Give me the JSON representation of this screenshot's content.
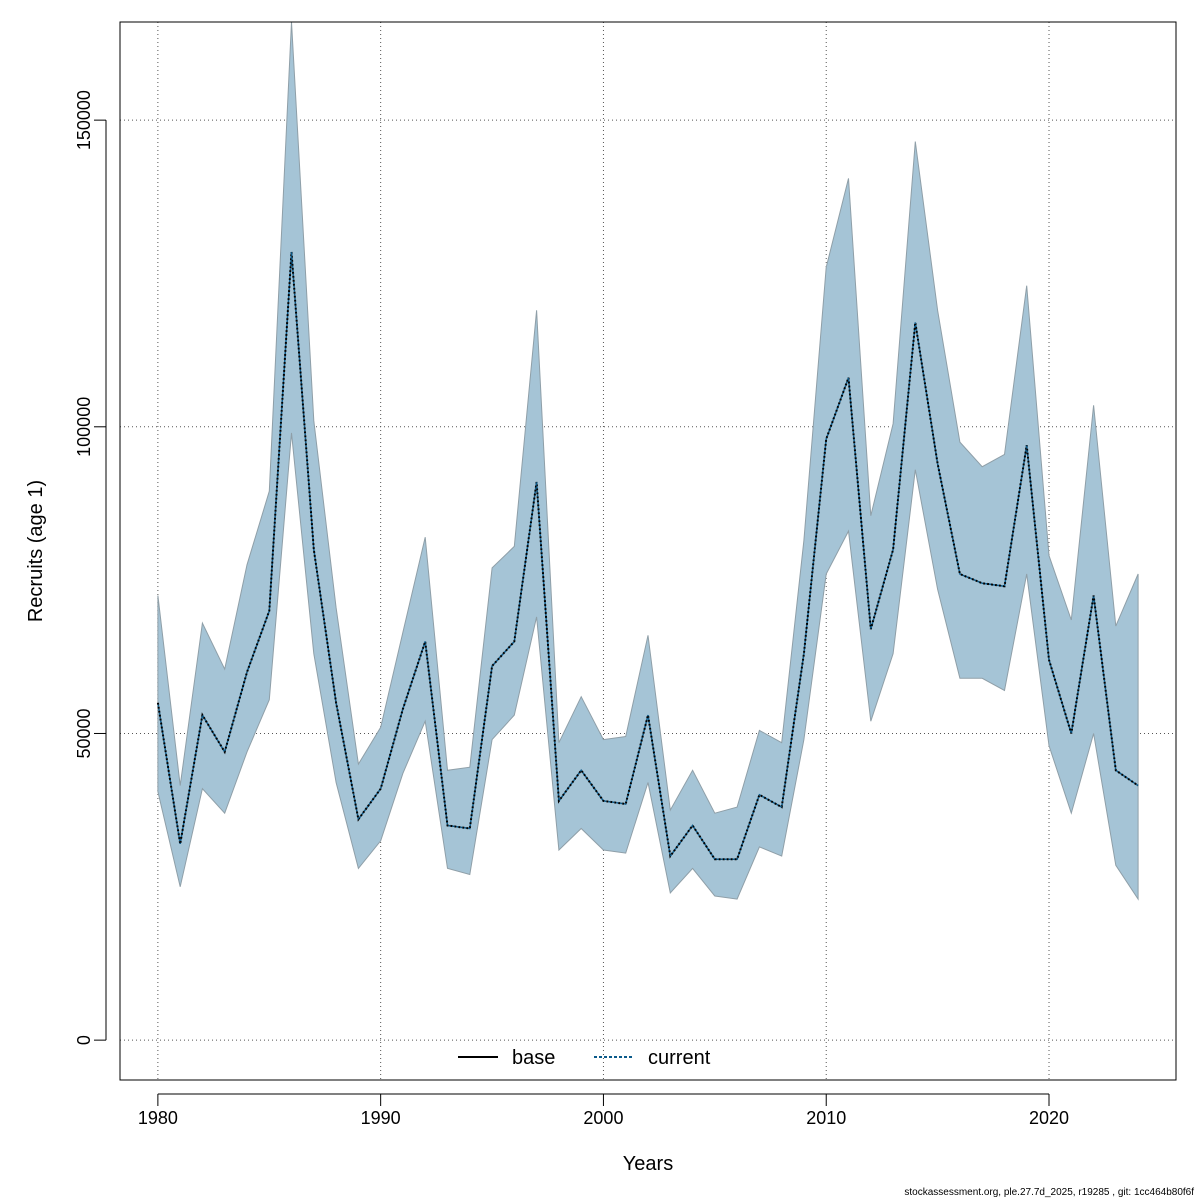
{
  "chart_data": {
    "type": "line",
    "xlabel": "Years",
    "ylabel": "Recruits (age 1)",
    "xlim": [
      1978.3,
      2025.7
    ],
    "ylim": [
      -6500,
      166000
    ],
    "x_ticks": [
      1980,
      1990,
      2000,
      2010,
      2020
    ],
    "y_ticks": [
      0,
      50000,
      100000,
      150000
    ],
    "grid": true,
    "legend": {
      "placement": "bottom-center",
      "entries": [
        "base",
        "current"
      ]
    },
    "colors": {
      "band": "#a5c4d6",
      "band_edge": "#8f9fa8",
      "base": "#000000",
      "current": "#0b5a8a",
      "grid": "#555555"
    },
    "x": [
      1980,
      1981,
      1982,
      1983,
      1984,
      1985,
      1986,
      1987,
      1988,
      1989,
      1990,
      1991,
      1992,
      1993,
      1994,
      1995,
      1996,
      1997,
      1998,
      1999,
      2000,
      2001,
      2002,
      2003,
      2004,
      2005,
      2006,
      2007,
      2008,
      2009,
      2010,
      2011,
      2012,
      2013,
      2014,
      2015,
      2016,
      2017,
      2018,
      2019,
      2020,
      2021,
      2022,
      2023,
      2024
    ],
    "series": [
      {
        "name": "base",
        "style": "solid",
        "values": [
          55000,
          32000,
          53000,
          47000,
          60000,
          70000,
          128500,
          80000,
          55000,
          36000,
          41000,
          54000,
          65000,
          35000,
          34500,
          61000,
          65000,
          91000,
          39000,
          44000,
          39000,
          38500,
          53000,
          30000,
          35000,
          29500,
          29500,
          40000,
          38000,
          63000,
          98000,
          108000,
          67000,
          80000,
          117000,
          94000,
          76000,
          74500,
          74000,
          97000,
          62000,
          50000,
          72500,
          44000,
          41500
        ]
      },
      {
        "name": "current",
        "style": "dashed",
        "values": [
          55000,
          32000,
          53000,
          47000,
          60000,
          70000,
          128500,
          80000,
          55000,
          36000,
          41000,
          54000,
          65000,
          35000,
          34500,
          61000,
          65000,
          91000,
          39000,
          44000,
          39000,
          38500,
          53000,
          30000,
          35000,
          29500,
          29500,
          40000,
          38000,
          63000,
          98000,
          108000,
          67000,
          80000,
          117000,
          94000,
          76000,
          74500,
          74000,
          97000,
          62000,
          50000,
          72500,
          44000,
          41500
        ]
      }
    ],
    "band": {
      "lower": [
        40500,
        25000,
        41000,
        37000,
        47000,
        55500,
        99000,
        63000,
        42000,
        28000,
        32500,
        43500,
        52000,
        28000,
        27000,
        49000,
        53000,
        69000,
        31000,
        34500,
        31000,
        30500,
        42000,
        24000,
        28000,
        23500,
        23000,
        31500,
        30000,
        49000,
        76000,
        83000,
        52000,
        63000,
        93000,
        73500,
        59000,
        59000,
        57000,
        76000,
        48000,
        37000,
        50000,
        28500,
        23000
      ],
      "upper": [
        72500,
        41500,
        68000,
        60500,
        77500,
        89500,
        166000,
        101000,
        70500,
        45000,
        51000,
        66500,
        82000,
        44000,
        44500,
        77000,
        80500,
        119000,
        48500,
        56000,
        49000,
        49500,
        66000,
        37500,
        44000,
        37000,
        38000,
        50500,
        48500,
        81500,
        126000,
        140500,
        85500,
        100500,
        146500,
        119000,
        97500,
        93500,
        95500,
        123000,
        79000,
        68500,
        103500,
        67500,
        76000
      ]
    }
  },
  "footer": "stockassessment.org, ple.27.7d_2025, r19285 , git: 1cc464b80f6f"
}
